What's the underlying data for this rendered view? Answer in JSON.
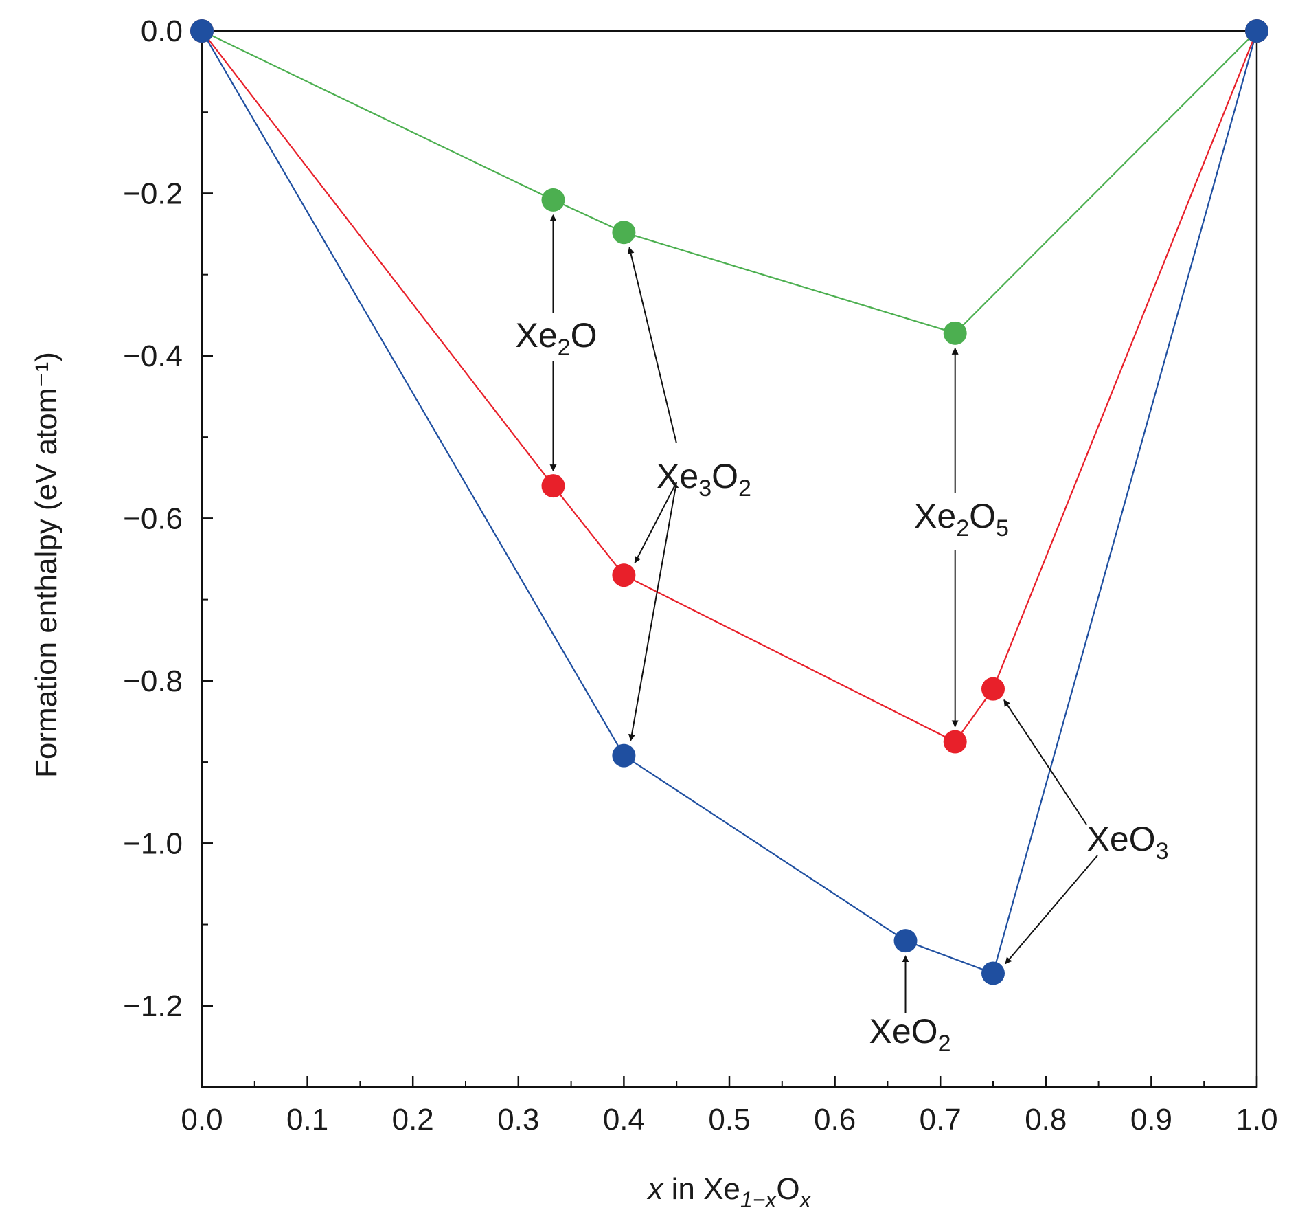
{
  "chart_data": {
    "type": "line",
    "title": "",
    "xlabel": {
      "pre": "x",
      "mid": " in Xe",
      "sub1": "1−x",
      "mid2": "O",
      "sub2": "x"
    },
    "ylabel": "Formation enthalpy (eV atom⁻¹)",
    "xlim": [
      0.0,
      1.0
    ],
    "ylim": [
      -1.3,
      0.0
    ],
    "xticks": [
      0.0,
      0.1,
      0.2,
      0.3,
      0.4,
      0.5,
      0.6,
      0.7,
      0.8,
      0.9,
      1.0
    ],
    "xtick_labels": [
      "0.0",
      "0.1",
      "0.2",
      "0.3",
      "0.4",
      "0.5",
      "0.6",
      "0.7",
      "0.8",
      "0.9",
      "1.0"
    ],
    "yticks": [
      0.0,
      -0.2,
      -0.4,
      -0.6,
      -0.8,
      -1.0,
      -1.2
    ],
    "ytick_labels": [
      "0.0",
      "−0.2",
      "−0.4",
      "−0.6",
      "−0.8",
      "−1.0",
      "−1.2"
    ],
    "grid": false,
    "series": [
      {
        "color": "#4caf50",
        "x": [
          0.0,
          0.333,
          0.4,
          0.714,
          1.0
        ],
        "y": [
          0.0,
          -0.208,
          -0.248,
          -0.372,
          0.0
        ]
      },
      {
        "color": "#e8202a",
        "x": [
          0.0,
          0.333,
          0.4,
          0.714,
          0.75,
          1.0
        ],
        "y": [
          0.0,
          -0.56,
          -0.67,
          -0.875,
          -0.81,
          0.0
        ]
      },
      {
        "color": "#1f4fa0",
        "x": [
          0.0,
          0.4,
          0.667,
          0.75,
          1.0
        ],
        "y": [
          0.0,
          -0.892,
          -1.12,
          -1.16,
          0.0
        ]
      }
    ],
    "annotations": [
      {
        "base": "Xe",
        "sub1": "2",
        "rest": "O",
        "sub2": ""
      },
      {
        "base": "Xe",
        "sub1": "3",
        "rest": "O",
        "sub2": "2"
      },
      {
        "base": "Xe",
        "sub1": "2",
        "rest": "O",
        "sub2": "5"
      },
      {
        "base": "XeO",
        "sub1": "3",
        "rest": "",
        "sub2": ""
      },
      {
        "base": "XeO",
        "sub1": "2",
        "rest": "",
        "sub2": ""
      }
    ]
  }
}
